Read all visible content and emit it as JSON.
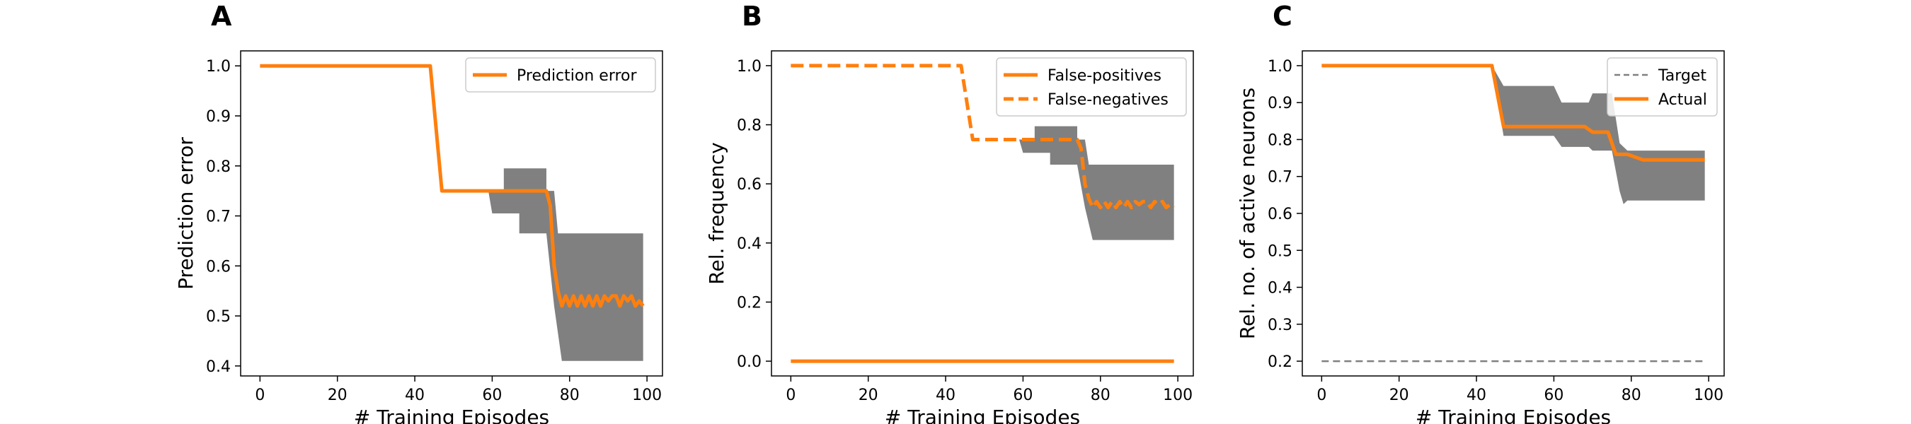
{
  "chart_data": [
    {
      "panel": "A",
      "type": "line",
      "xlabel": "# Training Episodes",
      "ylabel": "Prediction error",
      "xlim": [
        -5,
        104
      ],
      "ylim": [
        0.38,
        1.03
      ],
      "xticks": [
        0,
        20,
        40,
        60,
        80,
        100
      ],
      "yticks": [
        0.4,
        0.5,
        0.6,
        0.7,
        0.8,
        0.9,
        1.0
      ],
      "ytick_labels": [
        "0.4",
        "0.5",
        "0.6",
        "0.7",
        "0.8",
        "0.9",
        "1.0"
      ],
      "grid": false,
      "legend_position": "top-right",
      "band_color": "#808080",
      "bands": [
        {
          "upper": [
            [
              59,
              0.75
            ],
            [
              63,
              0.75
            ],
            [
              63,
              0.795
            ],
            [
              74,
              0.795
            ],
            [
              74,
              0.75
            ],
            [
              76,
              0.75
            ],
            [
              77,
              0.665
            ],
            [
              99,
              0.665
            ]
          ],
          "lower": [
            [
              59,
              0.75
            ],
            [
              60,
              0.705
            ],
            [
              67,
              0.705
            ],
            [
              67,
              0.665
            ],
            [
              74,
              0.665
            ],
            [
              76,
              0.52
            ],
            [
              78,
              0.41
            ],
            [
              99,
              0.41
            ]
          ]
        }
      ],
      "series": [
        {
          "name": "Prediction error",
          "style": "solid",
          "color": "#ff7f0e",
          "points": [
            [
              0,
              1.0
            ],
            [
              44,
              1.0
            ],
            [
              47,
              0.75
            ],
            [
              74,
              0.75
            ],
            [
              75,
              0.72
            ],
            [
              76,
              0.6
            ],
            [
              77,
              0.55
            ],
            [
              78,
              0.52
            ],
            [
              79,
              0.54
            ],
            [
              80,
              0.52
            ],
            [
              81,
              0.54
            ],
            [
              82,
              0.52
            ],
            [
              83,
              0.54
            ],
            [
              84,
              0.52
            ],
            [
              85,
              0.54
            ],
            [
              86,
              0.52
            ],
            [
              87,
              0.54
            ],
            [
              88,
              0.52
            ],
            [
              89,
              0.54
            ],
            [
              90,
              0.53
            ],
            [
              91,
              0.54
            ],
            [
              92,
              0.54
            ],
            [
              93,
              0.52
            ],
            [
              94,
              0.54
            ],
            [
              95,
              0.53
            ],
            [
              96,
              0.54
            ],
            [
              97,
              0.52
            ],
            [
              98,
              0.53
            ],
            [
              99,
              0.52
            ]
          ]
        }
      ]
    },
    {
      "panel": "B",
      "type": "line",
      "xlabel": "# Training Episodes",
      "ylabel": "Rel. frequency",
      "xlim": [
        -5,
        104
      ],
      "ylim": [
        -0.05,
        1.05
      ],
      "xticks": [
        0,
        20,
        40,
        60,
        80,
        100
      ],
      "yticks": [
        0.0,
        0.2,
        0.4,
        0.6,
        0.8,
        1.0
      ],
      "ytick_labels": [
        "0.0",
        "0.2",
        "0.4",
        "0.6",
        "0.8",
        "1.0"
      ],
      "grid": false,
      "legend_position": "top-right",
      "band_color": "#808080",
      "bands": [
        {
          "upper": [
            [
              59,
              0.75
            ],
            [
              63,
              0.75
            ],
            [
              63,
              0.795
            ],
            [
              74,
              0.795
            ],
            [
              74,
              0.75
            ],
            [
              76,
              0.75
            ],
            [
              77,
              0.665
            ],
            [
              99,
              0.665
            ]
          ],
          "lower": [
            [
              59,
              0.75
            ],
            [
              60,
              0.705
            ],
            [
              67,
              0.705
            ],
            [
              67,
              0.665
            ],
            [
              74,
              0.665
            ],
            [
              76,
              0.52
            ],
            [
              78,
              0.41
            ],
            [
              99,
              0.41
            ]
          ]
        }
      ],
      "series": [
        {
          "name": "False-positives",
          "style": "solid",
          "color": "#ff7f0e",
          "points": [
            [
              0,
              0.0
            ],
            [
              99,
              0.0
            ]
          ]
        },
        {
          "name": "False-negatives",
          "style": "dashed",
          "color": "#ff7f0e",
          "points": [
            [
              0,
              1.0
            ],
            [
              44,
              1.0
            ],
            [
              47,
              0.75
            ],
            [
              74,
              0.75
            ],
            [
              75,
              0.72
            ],
            [
              76,
              0.6
            ],
            [
              77,
              0.55
            ],
            [
              78,
              0.52
            ],
            [
              79,
              0.54
            ],
            [
              80,
              0.52
            ],
            [
              81,
              0.54
            ],
            [
              82,
              0.52
            ],
            [
              83,
              0.54
            ],
            [
              84,
              0.52
            ],
            [
              85,
              0.54
            ],
            [
              86,
              0.52
            ],
            [
              87,
              0.54
            ],
            [
              88,
              0.52
            ],
            [
              89,
              0.54
            ],
            [
              90,
              0.53
            ],
            [
              91,
              0.54
            ],
            [
              92,
              0.54
            ],
            [
              93,
              0.52
            ],
            [
              94,
              0.54
            ],
            [
              95,
              0.53
            ],
            [
              96,
              0.54
            ],
            [
              97,
              0.52
            ],
            [
              98,
              0.53
            ],
            [
              99,
              0.52
            ]
          ]
        }
      ]
    },
    {
      "panel": "C",
      "type": "line",
      "xlabel": "# Training Episodes",
      "ylabel": "Rel. no. of active neurons",
      "xlim": [
        -5,
        104
      ],
      "ylim": [
        0.16,
        1.04
      ],
      "xticks": [
        0,
        20,
        40,
        60,
        80,
        100
      ],
      "yticks": [
        0.2,
        0.3,
        0.4,
        0.5,
        0.6,
        0.7,
        0.8,
        0.9,
        1.0
      ],
      "ytick_labels": [
        "0.2",
        "0.3",
        "0.4",
        "0.5",
        "0.6",
        "0.7",
        "0.8",
        "0.9",
        "1.0"
      ],
      "grid": false,
      "legend_position": "top-right",
      "band_color": "#808080",
      "bands": [
        {
          "upper": [
            [
              44,
              1.0
            ],
            [
              47,
              0.945
            ],
            [
              60,
              0.945
            ],
            [
              62,
              0.9
            ],
            [
              69,
              0.9
            ],
            [
              70,
              0.925
            ],
            [
              75,
              0.925
            ],
            [
              77,
              0.79
            ],
            [
              79,
              0.77
            ],
            [
              99,
              0.77
            ]
          ],
          "lower": [
            [
              44,
              1.0
            ],
            [
              47,
              0.81
            ],
            [
              60,
              0.81
            ],
            [
              62,
              0.78
            ],
            [
              69,
              0.78
            ],
            [
              70,
              0.77
            ],
            [
              75,
              0.77
            ],
            [
              77,
              0.66
            ],
            [
              78,
              0.625
            ],
            [
              79,
              0.635
            ],
            [
              99,
              0.635
            ]
          ]
        }
      ],
      "series": [
        {
          "name": "Target",
          "style": "dashed-thin",
          "color": "#808080",
          "points": [
            [
              0,
              0.2
            ],
            [
              99,
              0.2
            ]
          ]
        },
        {
          "name": "Actual",
          "style": "solid",
          "color": "#ff7f0e",
          "points": [
            [
              0,
              1.0
            ],
            [
              44,
              1.0
            ],
            [
              47,
              0.835
            ],
            [
              68,
              0.835
            ],
            [
              70,
              0.82
            ],
            [
              74,
              0.82
            ],
            [
              76,
              0.76
            ],
            [
              79,
              0.76
            ],
            [
              83,
              0.745
            ],
            [
              99,
              0.745
            ]
          ]
        }
      ]
    }
  ]
}
